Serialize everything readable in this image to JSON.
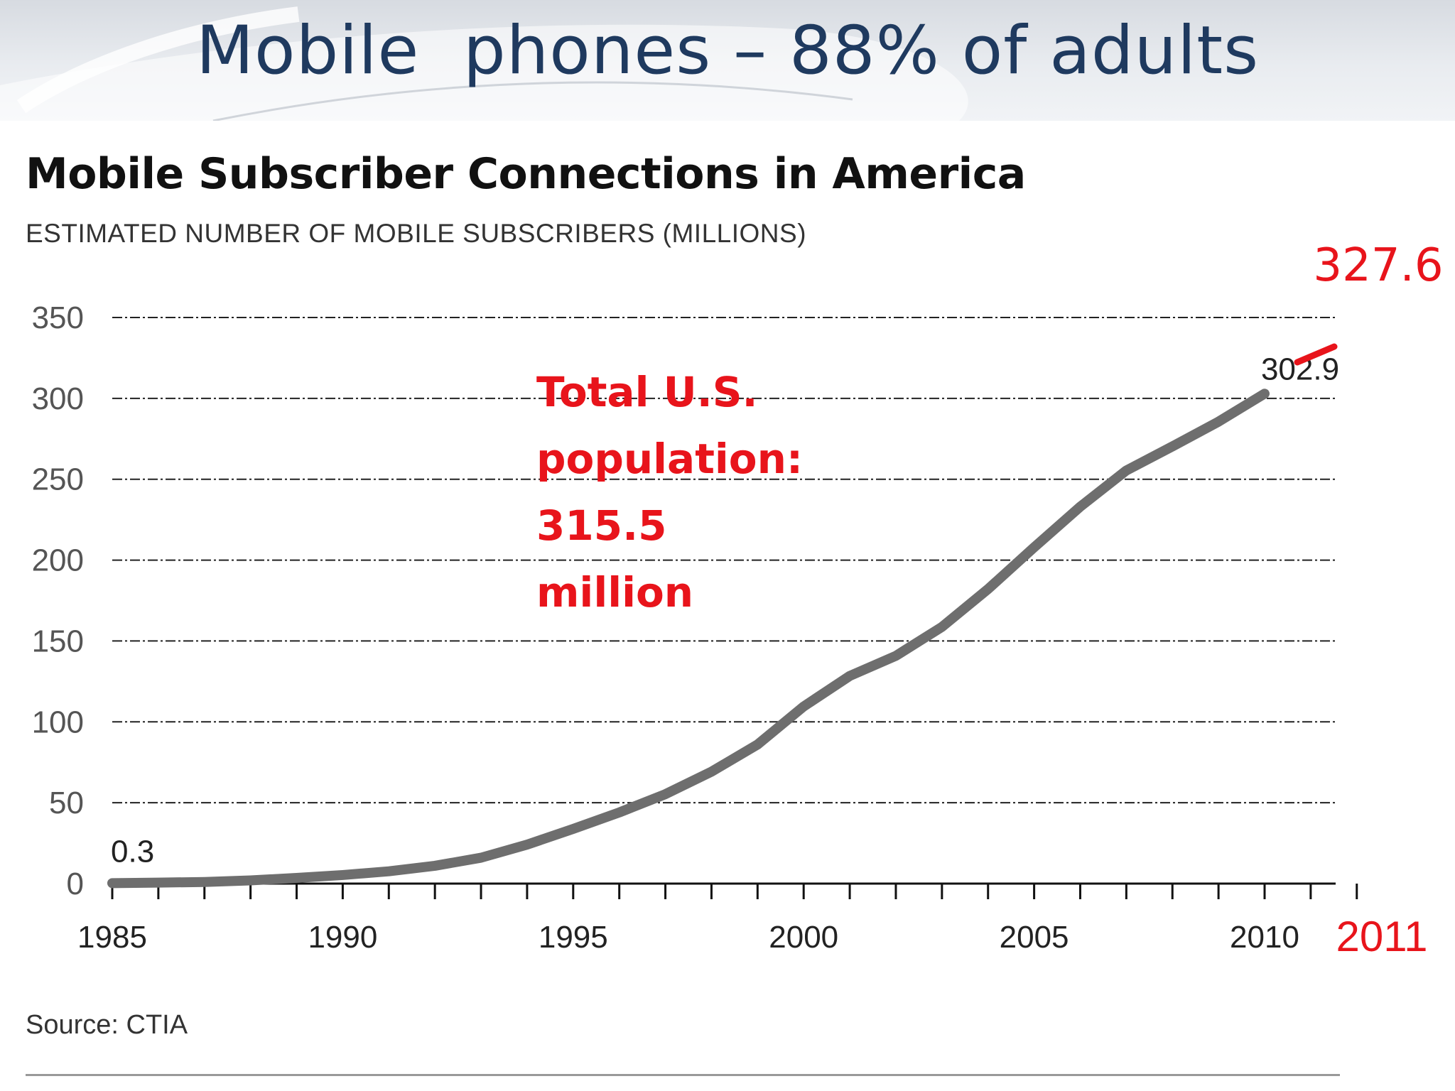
{
  "slide": {
    "title": "Mobile  phones – 88% of adults"
  },
  "chart_data": {
    "type": "line",
    "title": "Mobile Subscriber Connections in America",
    "subtitle": "ESTIMATED NUMBER OF MOBILE SUBSCRIBERS (MILLIONS)",
    "xlim": [
      1985,
      2012
    ],
    "ylim": [
      0,
      350
    ],
    "yticks": [
      0,
      50,
      100,
      150,
      200,
      250,
      300,
      350
    ],
    "xticks": [
      1985,
      1990,
      1995,
      2000,
      2005,
      2010
    ],
    "grid": true,
    "series": [
      {
        "x": [
          1985,
          1986,
          1987,
          1988,
          1989,
          1990,
          1991,
          1992,
          1993,
          1994,
          1995,
          1996,
          1997,
          1998,
          1999,
          2000,
          2001,
          2002,
          2003,
          2004,
          2005,
          2006,
          2007,
          2008,
          2009,
          2010
        ],
        "values": [
          0.3,
          0.6,
          1.0,
          2.0,
          3.5,
          5.3,
          7.6,
          11.0,
          16.0,
          24.1,
          33.8,
          44.0,
          55.3,
          69.2,
          86.0,
          109.5,
          128.4,
          140.8,
          158.7,
          182.1,
          207.9,
          233.0,
          255.4,
          270.3,
          285.6,
          302.9
        ],
        "color": "#6e6e6e"
      }
    ],
    "data_labels": [
      {
        "x": 1985,
        "y": 0.3,
        "text": "0.3"
      },
      {
        "x": 2010,
        "y": 302.9,
        "text": "302.9"
      }
    ],
    "annotations": {
      "extra_year": {
        "x": 2011,
        "text": "2011"
      },
      "extra_value": {
        "x": 2011,
        "y": 327.6,
        "text": "327.6",
        "color": "#e8141b"
      },
      "population_note": {
        "lines": [
          "Total U.S.",
          "population:",
          "315.5",
          "million"
        ],
        "color": "#e8141b"
      }
    },
    "source": "Source: CTIA"
  }
}
